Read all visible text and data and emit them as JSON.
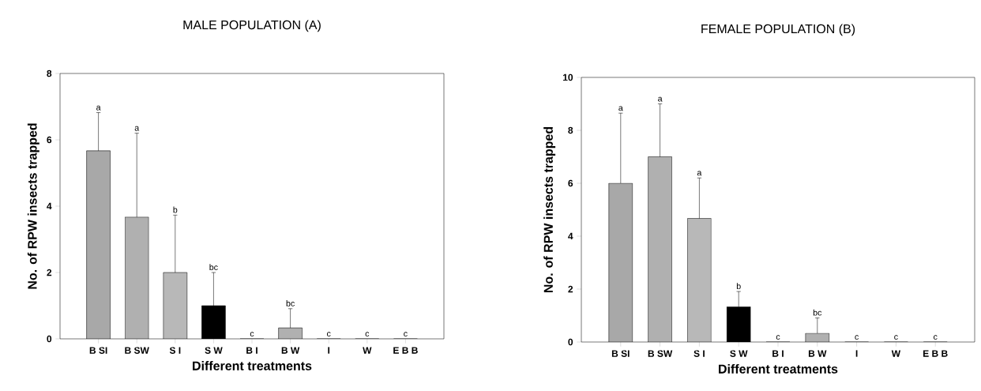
{
  "chart_data": [
    {
      "type": "bar",
      "title": "MALE POPULATION (A)",
      "xlabel": "Different treatments",
      "ylabel": "No. of RPW insects trapped",
      "categories": [
        "B SI",
        "B SW",
        "S I",
        "S W",
        "B I",
        "B W",
        "I",
        "W",
        "E B B"
      ],
      "values": [
        5.67,
        3.67,
        2.0,
        1.0,
        0,
        0.33,
        0,
        0,
        0
      ],
      "errors": [
        1.15,
        2.53,
        1.73,
        1.0,
        null,
        0.58,
        null,
        null,
        null
      ],
      "annotations": [
        {
          "text": "a",
          "x": "B SI",
          "y": 6.82
        },
        {
          "text": "a",
          "x": "B SW",
          "y": 6.2
        },
        {
          "text": "b",
          "x": "S I",
          "y": 3.73
        },
        {
          "text": "bc",
          "x": "S W",
          "y": 2.0
        },
        {
          "text": "c",
          "x": "B I",
          "y": 0
        },
        {
          "text": "bc",
          "x": "B W",
          "y": 0.91
        },
        {
          "text": "c",
          "x": "I",
          "y": 0
        },
        {
          "text": "c",
          "x": "W",
          "y": 0
        },
        {
          "text": "c",
          "x": "E B B",
          "y": 0
        }
      ],
      "colors": [
        "#a8a8a8",
        "#b0b0b0",
        "#b8b8b8",
        "#000000",
        "#b0b0b0",
        "#b0b0b0",
        "#b0b0b0",
        "#b0b0b0",
        "#b0b0b0"
      ],
      "ylim": [
        0,
        8
      ],
      "yticks": [
        0,
        2,
        4,
        6,
        8
      ]
    },
    {
      "type": "bar",
      "title": "FEMALE POPULATION (B)",
      "xlabel": "Different treatments",
      "ylabel": "No. of RPW insects trapped",
      "categories": [
        "B SI",
        "B SW",
        "S I",
        "S W",
        "B I",
        "B W",
        "I",
        "W",
        "E B B"
      ],
      "values": [
        6.0,
        7.0,
        4.67,
        1.33,
        0,
        0.33,
        0,
        0,
        0
      ],
      "errors": [
        2.65,
        2.0,
        1.53,
        0.58,
        null,
        0.58,
        null,
        null,
        null
      ],
      "annotations": [
        {
          "text": "a",
          "x": "B SI",
          "y": 8.65
        },
        {
          "text": "a",
          "x": "B SW",
          "y": 9.0
        },
        {
          "text": "a",
          "x": "S I",
          "y": 6.2
        },
        {
          "text": "b",
          "x": "S W",
          "y": 1.91
        },
        {
          "text": "c",
          "x": "B I",
          "y": 0
        },
        {
          "text": "bc",
          "x": "B W",
          "y": 0.91
        },
        {
          "text": "c",
          "x": "I",
          "y": 0
        },
        {
          "text": "c",
          "x": "W",
          "y": 0
        },
        {
          "text": "c",
          "x": "E B B",
          "y": 0
        }
      ],
      "colors": [
        "#a8a8a8",
        "#b0b0b0",
        "#b8b8b8",
        "#000000",
        "#b0b0b0",
        "#b0b0b0",
        "#b0b0b0",
        "#b0b0b0",
        "#b0b0b0"
      ],
      "ylim": [
        0,
        10
      ],
      "yticks": [
        0,
        2,
        4,
        6,
        8,
        10
      ]
    }
  ]
}
